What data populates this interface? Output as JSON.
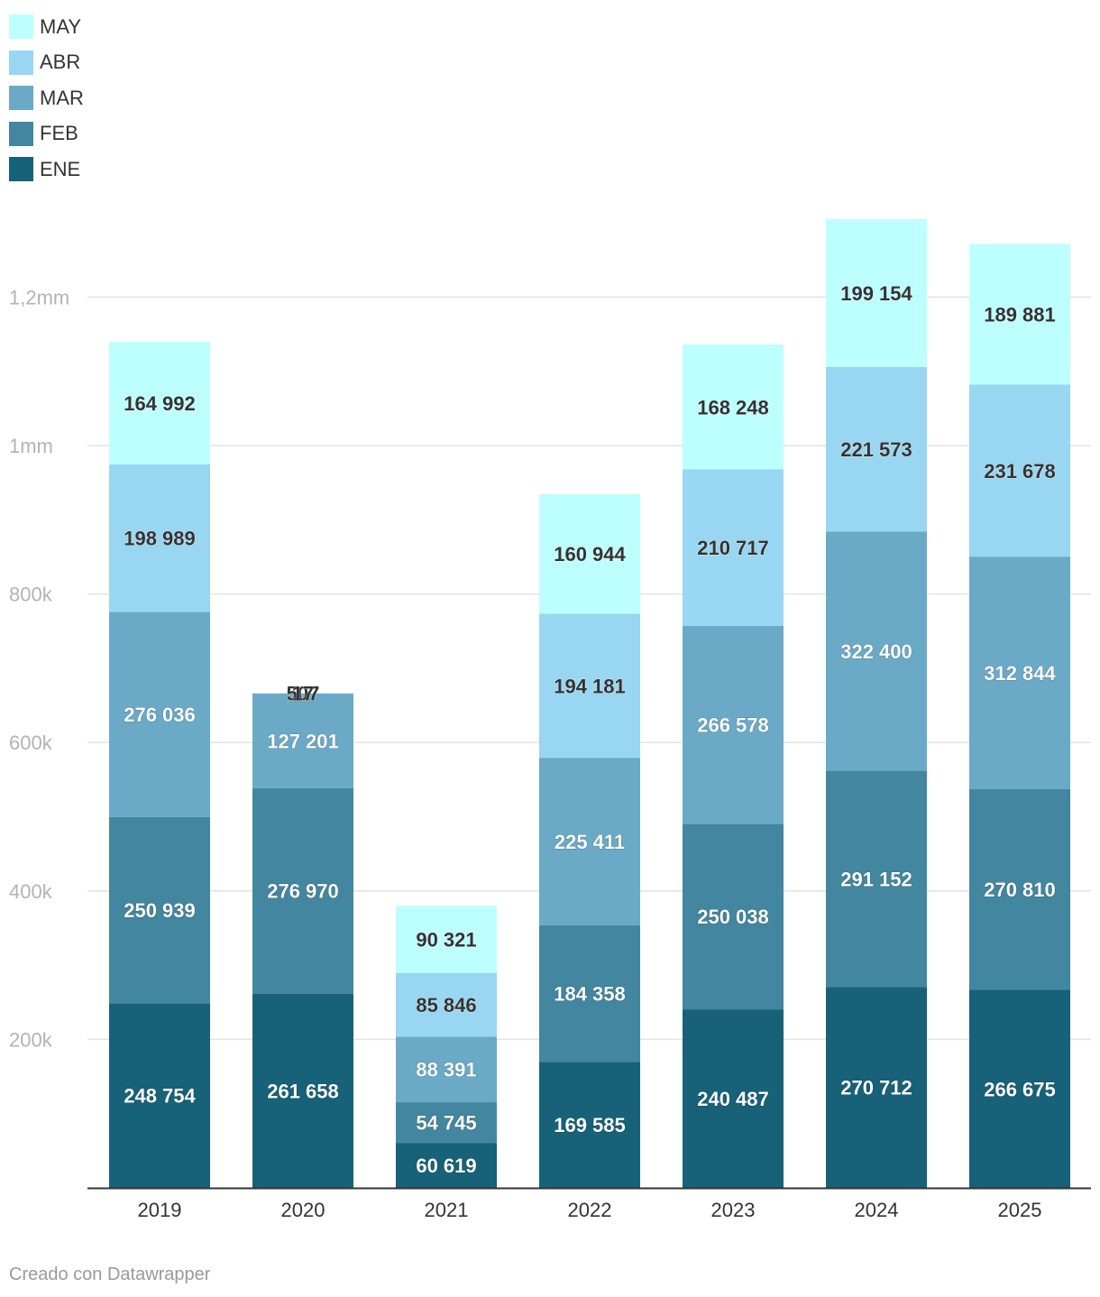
{
  "chart_data": {
    "type": "bar",
    "stacked": true,
    "categories": [
      "2019",
      "2020",
      "2021",
      "2022",
      "2023",
      "2024",
      "2025"
    ],
    "series": [
      {
        "name": "ENE",
        "color": "#176179",
        "values": [
          248754,
          261658,
          60619,
          169585,
          240487,
          270712,
          266675
        ],
        "labels": [
          "248 754",
          "261 658",
          "60 619",
          "169 585",
          "240 487",
          "270 712",
          "266 675"
        ]
      },
      {
        "name": "FEB",
        "color": "#43869f",
        "values": [
          250939,
          276970,
          54745,
          184358,
          250038,
          291152,
          270810
        ],
        "labels": [
          "250 939",
          "276 970",
          "54 745",
          "184 358",
          "250 038",
          "291 152",
          "270 810"
        ]
      },
      {
        "name": "MAR",
        "color": "#6aaac6",
        "values": [
          276036,
          127201,
          88391,
          225411,
          266578,
          322400,
          312844
        ],
        "labels": [
          "276 036",
          "127 201",
          "88 391",
          "225 411",
          "266 578",
          "322 400",
          "312 844"
        ]
      },
      {
        "name": "ABR",
        "color": "#98d6f1",
        "values": [
          198989,
          507,
          85846,
          194181,
          210717,
          221573,
          231678
        ],
        "labels": [
          "198 989",
          "507",
          "85 846",
          "194 181",
          "210 717",
          "221 573",
          "231 678"
        ]
      },
      {
        "name": "MAY",
        "color": "#bdfffe",
        "values": [
          164992,
          17,
          90321,
          160944,
          168248,
          199154,
          189881
        ],
        "labels": [
          "164 992",
          "17",
          "90 321",
          "160 944",
          "168 248",
          "199 154",
          "189 881"
        ]
      }
    ],
    "yticks": [
      200000,
      400000,
      600000,
      800000,
      1000000,
      1200000
    ],
    "ytick_labels": [
      "200k",
      "400k",
      "600k",
      "800k",
      "1mm",
      "1,2mm"
    ],
    "ylim": [
      0,
      1310000
    ],
    "grid": true,
    "legend": "top-left"
  },
  "footer": "Creado con Datawrapper"
}
